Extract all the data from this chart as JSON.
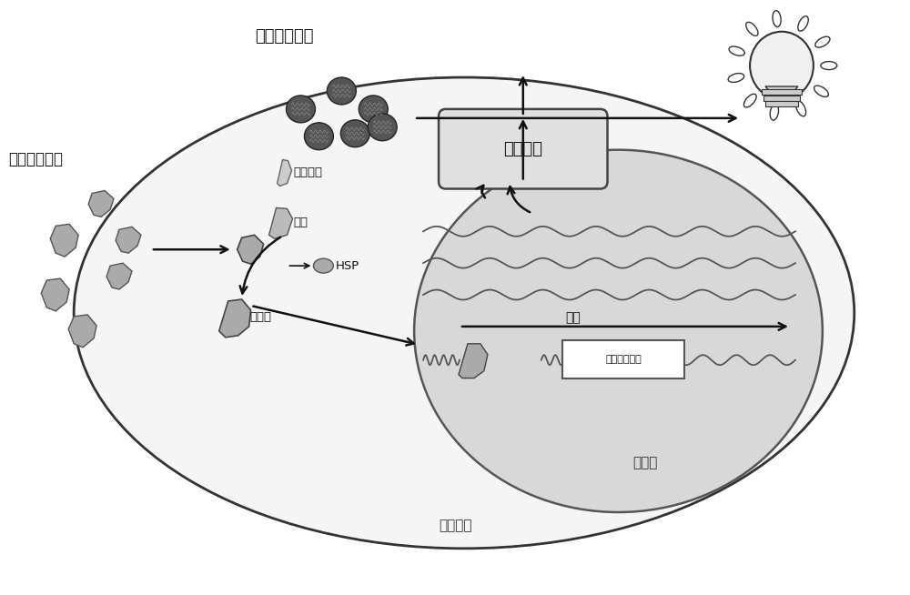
{
  "bg_color": "#ffffff",
  "labels": {
    "luciferin_substrate": "荧光素酶底物",
    "dioxin": "二恶英类物质",
    "luciferase": "荧光素酶",
    "transport_protein": "转运蛋白",
    "receptor": "受体",
    "hsp": "HSP",
    "complex": "复合体",
    "transcription": "转录",
    "luciferase_gene": "荧光素酶基因",
    "nucleus": "细胞核",
    "animal_cell": "动物细胞"
  }
}
